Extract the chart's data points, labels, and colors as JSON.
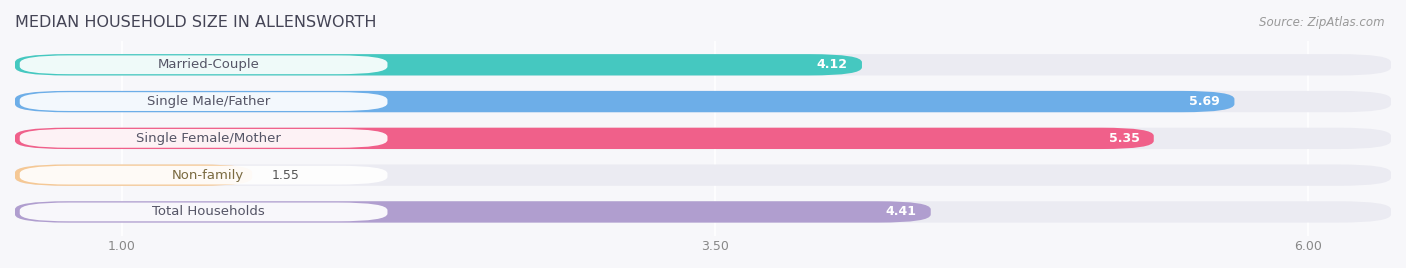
{
  "title": "MEDIAN HOUSEHOLD SIZE IN ALLENSWORTH",
  "source": "Source: ZipAtlas.com",
  "categories": [
    "Married-Couple",
    "Single Male/Father",
    "Single Female/Mother",
    "Non-family",
    "Total Households"
  ],
  "values": [
    4.12,
    5.69,
    5.35,
    1.55,
    4.41
  ],
  "colors": [
    "#45c8c0",
    "#6daee8",
    "#f0608a",
    "#f5c895",
    "#b09ecf"
  ],
  "label_text_colors": [
    "#555566",
    "#555566",
    "#555566",
    "#7a6a40",
    "#555566"
  ],
  "value_text_colors": [
    "white",
    "white",
    "white",
    "#555566",
    "white"
  ],
  "xlim_min": 0.55,
  "xlim_max": 6.35,
  "xticks": [
    1.0,
    3.5,
    6.0
  ],
  "xticklabels": [
    "1.00",
    "3.50",
    "6.00"
  ],
  "bar_height": 0.58,
  "bar_gap": 1.0,
  "label_fontsize": 9.5,
  "value_fontsize": 9.0,
  "title_fontsize": 11.5,
  "background_color": "#f7f7fa",
  "bar_bg_color": "#ebebf2",
  "pill_color": "white",
  "rounding": 0.22
}
